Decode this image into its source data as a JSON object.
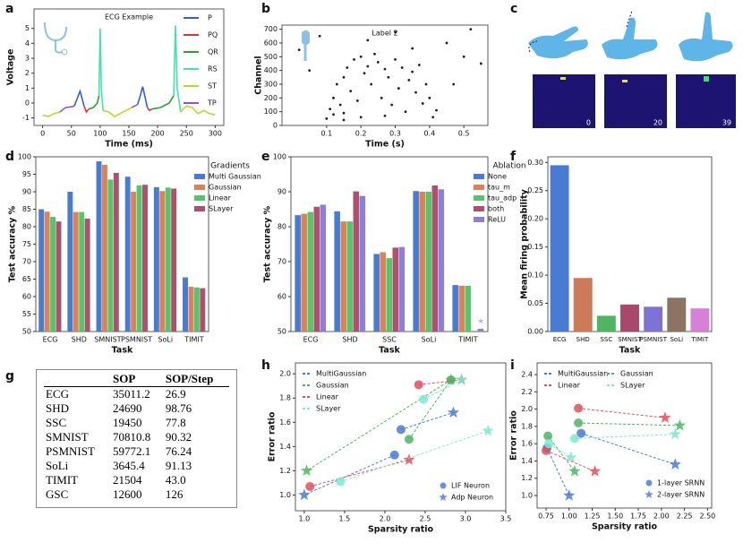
{
  "chart_data": [
    {
      "type": "line",
      "label": "a",
      "title": "ECG Example",
      "xlabel": "Time (ms)",
      "ylabel": "Voltage",
      "xlim": [
        -15,
        315
      ],
      "xticks": [
        0,
        50,
        100,
        150,
        200,
        250,
        300
      ],
      "ylim": [
        -1.5,
        6.3
      ],
      "yticks": [
        -1,
        0,
        1,
        2,
        3,
        4,
        5
      ],
      "series": [
        {
          "name": "P",
          "color": "#2f5fd0",
          "x": [
            55,
            60,
            65,
            68,
            72,
            null,
            165,
            170,
            174,
            178,
            182
          ],
          "values": [
            -0.2,
            0.3,
            0.8,
            0.4,
            -0.2,
            null,
            -0.1,
            0.5,
            1.1,
            0.4,
            -0.3
          ]
        },
        {
          "name": "PQ",
          "color": "#e0303a",
          "x": [
            72,
            76,
            80,
            null,
            182,
            186,
            190
          ],
          "values": [
            -0.2,
            -0.6,
            -0.4,
            null,
            -0.3,
            -0.5,
            -0.4
          ]
        },
        {
          "name": "QR",
          "color": "#2ca02c",
          "x": [
            80,
            88,
            95,
            98,
            null,
            190,
            205,
            220,
            228
          ],
          "values": [
            -0.4,
            -0.3,
            0,
            0.5,
            null,
            -0.4,
            -0.3,
            0,
            0.5
          ]
        },
        {
          "name": "RS",
          "color": "#45e0b0",
          "x": [
            98,
            100,
            102,
            105,
            null,
            228,
            231,
            234,
            240
          ],
          "values": [
            0.5,
            5.0,
            1.0,
            -0.5,
            null,
            0.5,
            5.2,
            1.0,
            -0.6
          ]
        },
        {
          "name": "ST",
          "color": "#bcd630",
          "x": [
            0,
            10,
            20,
            30,
            null,
            105,
            115,
            125,
            135,
            145,
            155,
            null,
            240,
            250,
            260,
            270,
            280,
            290,
            300
          ],
          "values": [
            -0.8,
            -0.9,
            -0.7,
            -0.6,
            null,
            -0.5,
            -0.6,
            -0.9,
            -0.7,
            -0.5,
            -0.3,
            null,
            -0.6,
            -0.2,
            -0.3,
            -0.7,
            -0.5,
            -0.7,
            -0.8
          ]
        },
        {
          "name": "TP",
          "color": "#9a4fd0",
          "x": [
            30,
            40,
            50,
            55,
            null,
            155,
            160,
            165
          ],
          "values": [
            -0.6,
            -0.3,
            -0.25,
            -0.2,
            null,
            -0.3,
            -0.2,
            -0.1
          ]
        }
      ]
    },
    {
      "type": "scatter",
      "label": "b",
      "title": "Label 2",
      "xlabel": "Time (s)",
      "ylabel": "Channel",
      "color": "#222222",
      "xlim": [
        -0.03,
        0.57
      ],
      "xticks": [
        0.1,
        0.2,
        0.3,
        0.4,
        0.5
      ],
      "ylim": [
        0,
        730
      ],
      "yticks": [
        0,
        100,
        200,
        300,
        400,
        500,
        600,
        700
      ],
      "x": [
        0.1,
        0.11,
        0.12,
        0.12,
        0.13,
        0.14,
        0.15,
        0.15,
        0.16,
        0.17,
        0.18,
        0.19,
        0.2,
        0.2,
        0.21,
        0.22,
        0.23,
        0.24,
        0.25,
        0.26,
        0.27,
        0.28,
        0.29,
        0.3,
        0.31,
        0.32,
        0.33,
        0.34,
        0.35,
        0.36,
        0.37,
        0.38,
        0.39,
        0.4,
        0.41,
        0.05,
        0.08,
        0.45,
        0.5,
        0.55,
        0.3,
        0.22,
        0.47,
        0.52,
        0.02,
        0.35,
        0.42,
        0.15,
        0.27
      ],
      "values": [
        50,
        120,
        80,
        200,
        300,
        150,
        350,
        90,
        420,
        250,
        480,
        180,
        500,
        60,
        380,
        430,
        300,
        520,
        460,
        200,
        410,
        350,
        150,
        480,
        270,
        420,
        100,
        330,
        390,
        240,
        440,
        160,
        300,
        200,
        60,
        400,
        650,
        600,
        500,
        450,
        680,
        620,
        300,
        700,
        550,
        560,
        110,
        40,
        70
      ]
    },
    {
      "type": "bar",
      "label": "d",
      "xlabel": "Task",
      "ylabel": "Test accuracy %",
      "legend_title": "Gradients",
      "categories": [
        "ECG",
        "SHD",
        "SMNIST",
        "PSMNIST",
        "SoLi",
        "TIMIT"
      ],
      "ylim": [
        50,
        100
      ],
      "yticks": [
        50,
        55,
        60,
        65,
        70,
        75,
        80,
        85,
        90,
        95,
        100
      ],
      "series": [
        {
          "name": "Multi Gaussian",
          "color": "#4a7bd3",
          "values": [
            85,
            90,
            98.7,
            94.3,
            91.3,
            65.5
          ]
        },
        {
          "name": "Gaussian",
          "color": "#d9835a",
          "values": [
            84.3,
            84.2,
            97.7,
            90,
            90.2,
            62.8
          ]
        },
        {
          "name": "Linear",
          "color": "#55c46a",
          "values": [
            82.8,
            84.2,
            93.5,
            91.8,
            91.2,
            62.6
          ]
        },
        {
          "name": "SLayer",
          "color": "#b04f6b",
          "values": [
            81.5,
            82.3,
            95.4,
            92,
            90.9,
            62.4
          ]
        }
      ]
    },
    {
      "type": "bar",
      "label": "e",
      "xlabel": "Task",
      "ylabel": "Test accuracy %",
      "legend_title": "Ablation",
      "categories": [
        "ECG",
        "SHD",
        "SSC",
        "SoLi",
        "TIMIT"
      ],
      "ylim": [
        50,
        100
      ],
      "yticks": [
        50,
        60,
        70,
        80,
        90,
        100
      ],
      "annotation": {
        "text": "*",
        "category": "TIMIT",
        "series": "ReLU"
      },
      "series": [
        {
          "name": "None",
          "color": "#4a7bd3",
          "values": [
            83.3,
            84.4,
            72.2,
            90.2,
            63.3
          ]
        },
        {
          "name": "tau_m",
          "color": "#d9835a",
          "values": [
            83.7,
            81.5,
            72.7,
            90,
            63.1
          ]
        },
        {
          "name": "tau_adp",
          "color": "#55c46a",
          "values": [
            84.2,
            81.5,
            71,
            90,
            63.1
          ]
        },
        {
          "name": "both",
          "color": "#b04f6b",
          "values": [
            85.7,
            90.1,
            74,
            91.8,
            null
          ]
        },
        {
          "name": "ReLU",
          "color": "#8a80d8",
          "values": [
            86.3,
            88.8,
            74.2,
            90.7,
            50.8
          ]
        }
      ]
    },
    {
      "type": "bar",
      "label": "f",
      "xlabel": "Task",
      "ylabel": "Mean firing probability",
      "categories": [
        "ECG",
        "SHD",
        "SSC",
        "SMNIST",
        "PSMNIST",
        "SoLi",
        "TIMIT"
      ],
      "values": [
        0.295,
        0.095,
        0.028,
        0.048,
        0.044,
        0.06,
        0.041
      ],
      "colors": [
        "#4a7bd3",
        "#cc7a58",
        "#4fb560",
        "#a8486a",
        "#7e73d4",
        "#8b7462",
        "#d680d8"
      ],
      "ylim": [
        0,
        0.31
      ],
      "yticks": [
        {
          "value": 0,
          "label": "0.00"
        },
        {
          "value": 0.05,
          "label": "0.05"
        },
        {
          "value": 0.1,
          "label": "0.10"
        },
        {
          "value": 0.15,
          "label": "0.15"
        },
        {
          "value": 0.2,
          "label": "0.20"
        },
        {
          "value": 0.25,
          "label": "0.25"
        },
        {
          "value": 0.3,
          "label": "0.30"
        }
      ]
    },
    {
      "type": "scatter",
      "label": "h",
      "xlabel": "Sparsity ratio",
      "ylabel": "Error ratio",
      "xlim": [
        0.89,
        3.5
      ],
      "xticks": [
        {
          "value": 1,
          "label": "1.0"
        },
        {
          "value": 1.5,
          "label": "1.5"
        },
        {
          "value": 2,
          "label": "2.0"
        },
        {
          "value": 2.5,
          "label": "2.5"
        },
        {
          "value": 3,
          "label": "3.0"
        },
        {
          "value": 3.5,
          "label": "3.5"
        }
      ],
      "ylim": [
        0.87,
        2.09
      ],
      "yticks": [
        {
          "value": 1,
          "label": "1.0"
        },
        {
          "value": 1.2,
          "label": "1.2"
        },
        {
          "value": 1.4,
          "label": "1.4"
        },
        {
          "value": 1.6,
          "label": "1.6"
        },
        {
          "value": 1.8,
          "label": "1.8"
        },
        {
          "value": 2,
          "label": "2.0"
        }
      ],
      "marker_legend": {
        "names": [
          "LIF Neuron",
          "Adp Neuron"
        ],
        "color": "#6d8ee0"
      },
      "series": [
        {
          "name": "MultiGaussian",
          "color": "#4a7bd3",
          "x": [
            2.2,
            2.12
          ],
          "values": [
            1.54,
            1.33
          ],
          "adp_x": [
            2.85,
            1.0
          ],
          "adp_values": [
            1.68,
            1.0
          ]
        },
        {
          "name": "Gaussian",
          "color": "#4fb560",
          "x": [
            2.3,
            2.82
          ],
          "values": [
            1.46,
            1.95
          ],
          "adp_x": [
            2.82,
            1.03
          ],
          "adp_values": [
            1.95,
            1.2
          ]
        },
        {
          "name": "Linear",
          "color": "#e0505a",
          "x": [
            2.42,
            1.07
          ],
          "values": [
            1.91,
            1.07
          ],
          "adp_x": [
            2.95,
            2.3
          ],
          "adp_values": [
            1.95,
            1.29
          ]
        },
        {
          "name": "SLayer",
          "color": "#7ee8d0",
          "x": [
            2.48,
            1.45
          ],
          "values": [
            1.79,
            1.11
          ],
          "adp_x": [
            2.95,
            3.28
          ],
          "adp_values": [
            1.95,
            1.53
          ]
        }
      ]
    },
    {
      "type": "scatter",
      "label": "i",
      "xlabel": "Sparsity ratio",
      "ylabel": "Error ratio",
      "xlim": [
        0.653,
        2.545
      ],
      "xticks": [
        {
          "value": 0.75,
          "label": "0.75"
        },
        {
          "value": 1,
          "label": "1.00"
        },
        {
          "value": 1.25,
          "label": "1.25"
        },
        {
          "value": 1.5,
          "label": "1.50"
        },
        {
          "value": 1.75,
          "label": "1.75"
        },
        {
          "value": 2,
          "label": "2.00"
        },
        {
          "value": 2.25,
          "label": "2.25"
        },
        {
          "value": 2.5,
          "label": "2.50"
        }
      ],
      "ylim": [
        0.855,
        2.535
      ],
      "yticks": [
        {
          "value": 1,
          "label": "1.0"
        },
        {
          "value": 1.2,
          "label": "1.2"
        },
        {
          "value": 1.4,
          "label": "1.4"
        },
        {
          "value": 1.6,
          "label": "1.6"
        },
        {
          "value": 1.8,
          "label": "1.8"
        },
        {
          "value": 2,
          "label": "2.0"
        },
        {
          "value": 2.2,
          "label": "2.2"
        },
        {
          "value": 2.4,
          "label": "2.4"
        }
      ],
      "marker_legend": {
        "names": [
          "1-layer SRNN",
          "2-layer SRNN"
        ],
        "color": "#6d8ee0"
      },
      "series": [
        {
          "name": "MultiGaussian",
          "color": "#4a7bd3",
          "x": [
            0.76,
            1.13
          ],
          "values": [
            1.55,
            1.72
          ],
          "adp_x": [
            1.0,
            2.15
          ],
          "adp_values": [
            1.0,
            1.36
          ]
        },
        {
          "name": "Gaussian",
          "color": "#4fb560",
          "x": [
            0.77,
            1.1
          ],
          "values": [
            1.69,
            1.84
          ],
          "adp_x": [
            1.06,
            2.2
          ],
          "adp_values": [
            1.28,
            1.81
          ]
        },
        {
          "name": "Linear",
          "color": "#e0505a",
          "x": [
            0.75,
            1.1
          ],
          "values": [
            1.52,
            2.01
          ],
          "adp_x": [
            1.28,
            2.04
          ],
          "adp_values": [
            1.28,
            1.9
          ]
        },
        {
          "name": "SLayer",
          "color": "#7ee8d0",
          "x": [
            0.78,
            1.06
          ],
          "values": [
            1.6,
            1.66
          ],
          "adp_x": [
            1.02,
            2.15
          ],
          "adp_values": [
            1.44,
            1.71
          ]
        }
      ]
    }
  ],
  "panel_c": {
    "label": "c",
    "frame_labels": [
      "0",
      "20",
      "39"
    ]
  },
  "table": {
    "label": "g",
    "columns": [
      "SOP",
      "SOP/Step"
    ],
    "rows": [
      [
        "ECG",
        "35011.2",
        "26.9"
      ],
      [
        "SHD",
        "24690",
        "98.76"
      ],
      [
        "SSC",
        "19450",
        "77.8"
      ],
      [
        "SMNIST",
        "70810.8",
        "90.32"
      ],
      [
        "PSMNIST",
        "59772.1",
        "76.24"
      ],
      [
        "SoLi",
        "3645.4",
        "91.13"
      ],
      [
        "TIMIT",
        "21504",
        "43.0"
      ],
      [
        "GSC",
        "12600",
        "126"
      ]
    ]
  }
}
